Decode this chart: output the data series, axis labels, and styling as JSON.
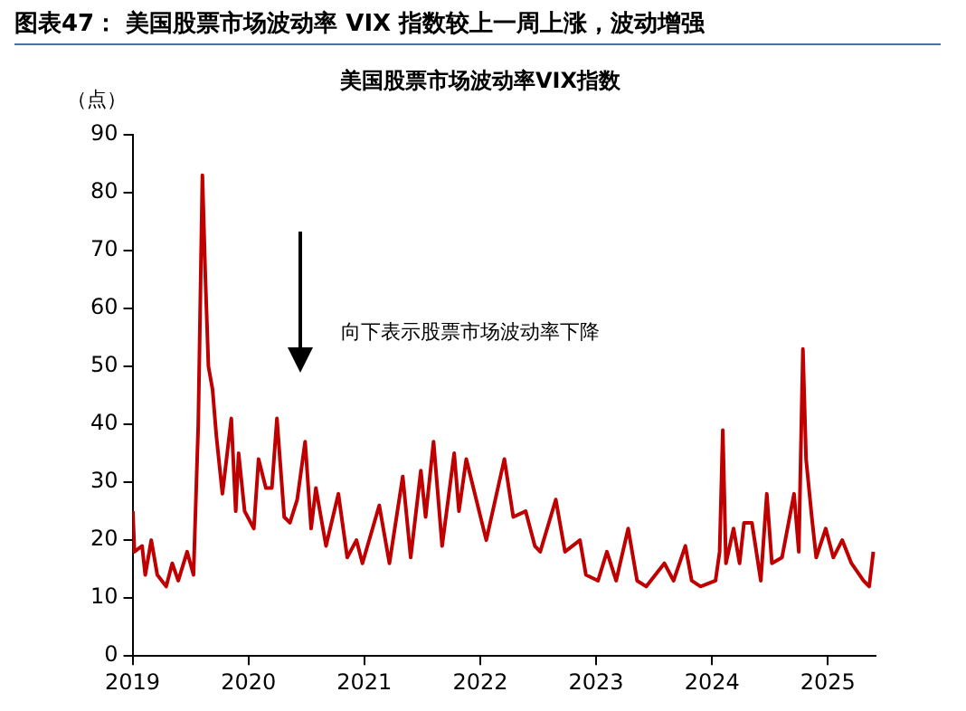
{
  "chart_data": {
    "type": "line",
    "title": "图表47： 美国股票市场波动率 VIX 指数较上一周上涨，波动增强",
    "subtitle": "美国股票市场波动率VIX指数",
    "ylabel": "（点）",
    "annotations": [
      "向下表示股票市场波动率下降"
    ],
    "series": [
      {
        "color": "#c00000",
        "x": [
          "2019-01-02",
          "2019-01-07",
          "2019-01-31",
          "2019-02-10",
          "2019-03-01",
          "2019-03-20",
          "2019-04-17",
          "2019-05-06",
          "2019-05-25",
          "2019-06-22",
          "2019-07-12",
          "2019-07-27",
          "2019-08-09",
          "2019-08-18",
          "2019-08-28",
          "2019-09-10",
          "2019-09-22",
          "2019-10-11",
          "2019-11-08",
          "2019-11-22",
          "2019-12-01",
          "2019-12-20",
          "2020-01-18",
          "2020-02-02",
          "2020-02-25",
          "2020-03-15",
          "2020-03-31",
          "2020-04-23",
          "2020-05-11",
          "2020-06-03",
          "2020-06-28",
          "2020-07-17",
          "2020-08-01",
          "2020-09-02",
          "2020-10-11",
          "2020-11-08",
          "2020-12-07",
          "2020-12-26",
          "2021-02-17",
          "2021-03-21",
          "2021-05-02",
          "2021-05-27",
          "2021-06-28",
          "2021-07-13",
          "2021-08-07",
          "2021-09-03",
          "2021-10-11",
          "2021-10-26",
          "2021-11-18",
          "2022-01-20",
          "2022-03-18",
          "2022-04-15",
          "2022-05-24",
          "2022-06-22",
          "2022-07-09",
          "2022-08-27",
          "2022-09-25",
          "2022-11-11",
          "2022-11-30",
          "2023-01-07",
          "2023-02-04",
          "2023-03-05",
          "2023-04-12",
          "2023-05-10",
          "2023-06-08",
          "2023-08-04",
          "2023-09-02",
          "2023-10-09",
          "2023-10-29",
          "2023-11-26",
          "2024-01-12",
          "2024-01-25",
          "2024-02-04",
          "2024-02-14",
          "2024-03-09",
          "2024-03-28",
          "2024-04-11",
          "2024-05-06",
          "2024-06-03",
          "2024-06-22",
          "2024-07-08",
          "2024-08-09",
          "2024-09-16",
          "2024-10-01",
          "2024-10-14",
          "2024-10-24",
          "2024-11-11",
          "2024-11-25",
          "2024-12-25",
          "2025-01-18",
          "2025-02-15",
          "2025-03-16",
          "2025-04-23",
          "2025-05-11",
          "2025-05-24"
        ],
        "values": [
          25,
          18,
          19,
          14,
          20,
          14,
          12,
          16,
          13,
          18,
          14,
          40,
          83,
          66,
          50,
          46,
          38,
          28,
          41,
          25,
          35,
          25,
          22,
          34,
          29,
          29,
          41,
          24,
          23,
          27,
          37,
          22,
          29,
          19,
          28,
          17,
          20,
          16,
          26,
          16,
          31,
          17,
          32,
          24,
          37,
          19,
          35,
          25,
          34,
          20,
          34,
          24,
          25,
          19,
          18,
          27,
          18,
          20,
          14,
          13,
          18,
          13,
          22,
          13,
          12,
          16,
          13,
          19,
          13,
          12,
          13,
          18,
          39,
          16,
          22,
          16,
          23,
          23,
          13,
          28,
          16,
          17,
          28,
          18,
          53,
          34,
          24,
          17,
          22,
          17,
          20,
          16,
          13,
          12,
          18
        ]
      }
    ],
    "xlim": [
      "2019-01-01",
      "2025-05-31"
    ],
    "xticks": [
      "2019",
      "2020",
      "2021",
      "2022",
      "2023",
      "2024",
      "2025"
    ],
    "ylim": [
      0,
      90
    ],
    "yticks": [
      0,
      10,
      20,
      30,
      40,
      50,
      60,
      70,
      80,
      90
    ],
    "grid": false,
    "legend": false,
    "marker": "none",
    "line_style": "solid"
  }
}
